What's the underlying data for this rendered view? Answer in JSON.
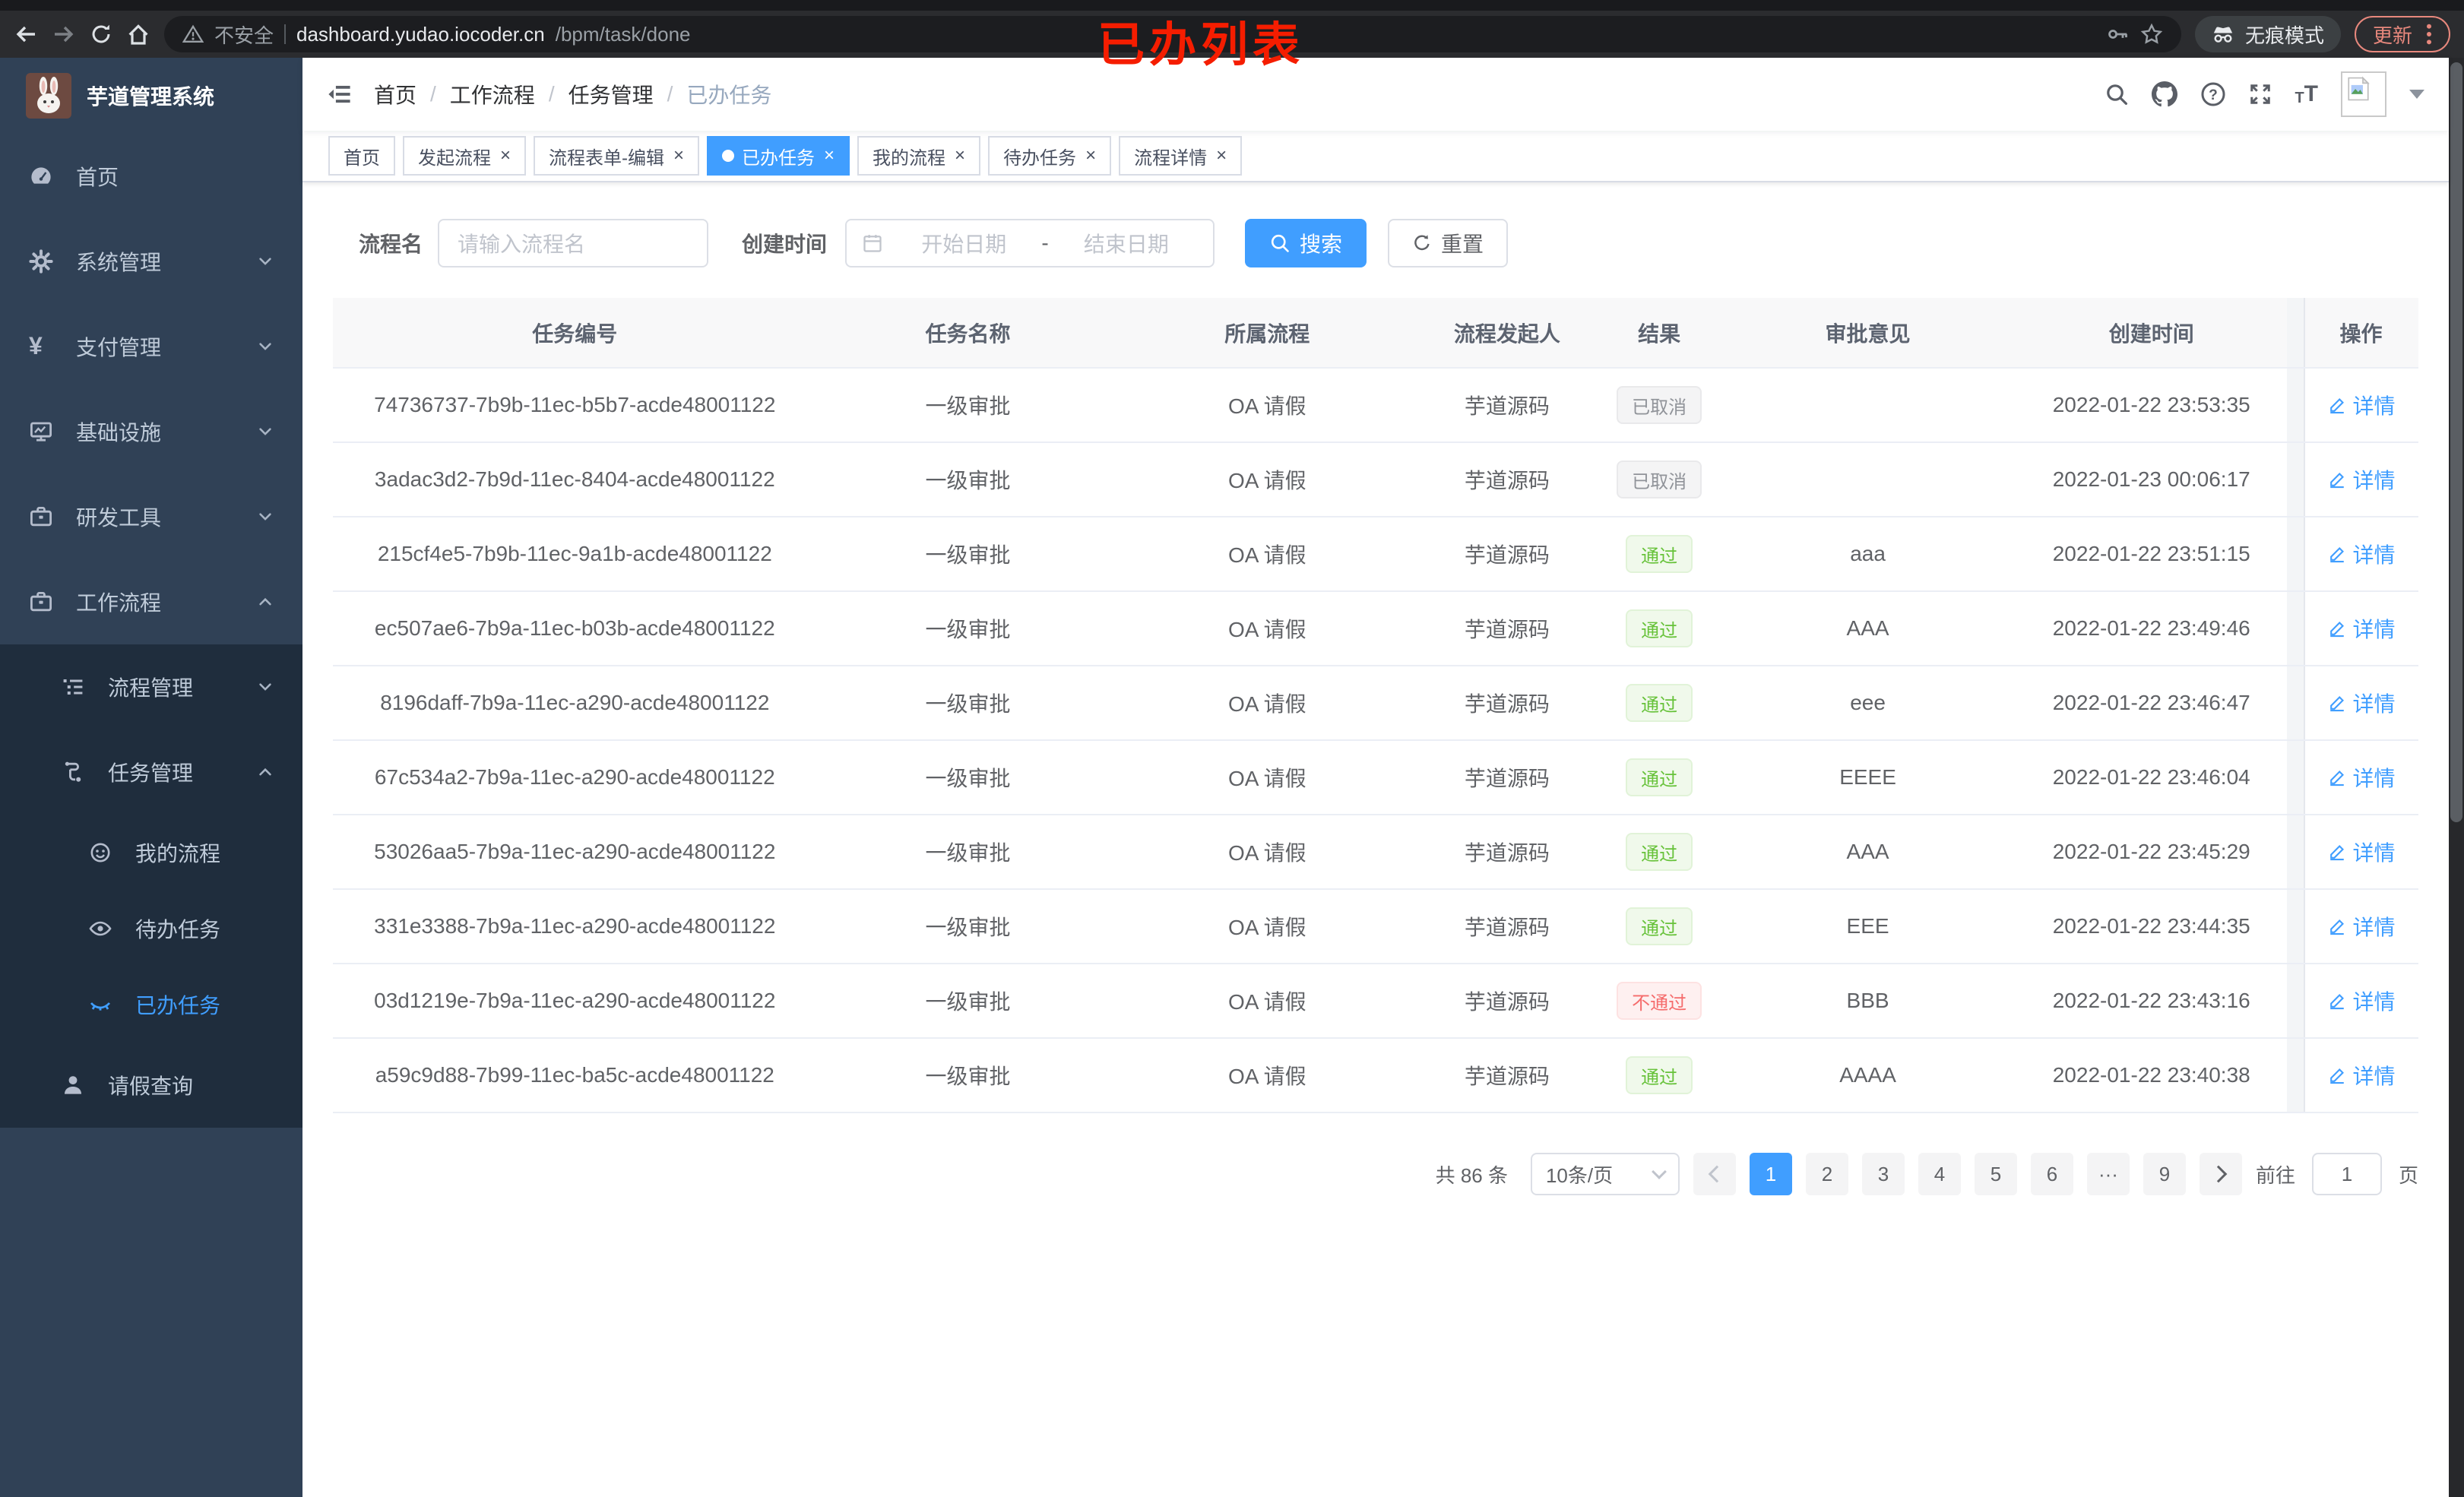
{
  "browser": {
    "security_label": "不安全",
    "url_host": "dashboard.yudao.iocoder.cn",
    "url_path": "/bpm/task/done",
    "incognito_label": "无痕模式",
    "update_label": "更新"
  },
  "annotation": "已办列表",
  "sidebar": {
    "title": "芋道管理系统",
    "items": [
      {
        "key": "home",
        "label": "首页",
        "icon": "dashboard",
        "indent": 1
      },
      {
        "key": "system",
        "label": "系统管理",
        "icon": "gear",
        "indent": 1,
        "arrow": "down"
      },
      {
        "key": "payment",
        "label": "支付管理",
        "icon": "yen",
        "indent": 1,
        "arrow": "down"
      },
      {
        "key": "infrastructure",
        "label": "基础设施",
        "icon": "monitor",
        "indent": 1,
        "arrow": "down"
      },
      {
        "key": "devtools",
        "label": "研发工具",
        "icon": "toolbox",
        "indent": 1,
        "arrow": "down"
      },
      {
        "key": "workflow",
        "label": "工作流程",
        "icon": "toolbox",
        "indent": 1,
        "arrow": "up"
      },
      {
        "key": "process-mgmt",
        "label": "流程管理",
        "icon": "tree",
        "indent": 2,
        "arrow": "down",
        "dark": true
      },
      {
        "key": "task-mgmt",
        "label": "任务管理",
        "icon": "flow",
        "indent": 2,
        "arrow": "up",
        "dark": true
      },
      {
        "key": "my-process",
        "label": "我的流程",
        "icon": "face",
        "indent": 3,
        "dark": true
      },
      {
        "key": "todo-tasks",
        "label": "待办任务",
        "icon": "eye",
        "indent": 3,
        "dark": true
      },
      {
        "key": "done-tasks",
        "label": "已办任务",
        "icon": "eye-closed",
        "indent": 3,
        "dark": true,
        "active": true
      },
      {
        "key": "leave-query",
        "label": "请假查询",
        "icon": "person",
        "indent": 2,
        "dark": true
      }
    ]
  },
  "navbar": {
    "breadcrumb": [
      {
        "label": "首页"
      },
      {
        "label": "工作流程"
      },
      {
        "label": "任务管理"
      },
      {
        "label": "已办任务",
        "current": true
      }
    ],
    "icons": [
      "search",
      "github",
      "help",
      "fullscreen",
      "font-size"
    ]
  },
  "tabs": [
    {
      "key": "home",
      "label": "首页",
      "closable": false
    },
    {
      "key": "start-process",
      "label": "发起流程",
      "closable": true
    },
    {
      "key": "form-edit",
      "label": "流程表单-编辑",
      "closable": true
    },
    {
      "key": "done-tasks",
      "label": "已办任务",
      "closable": true,
      "active": true
    },
    {
      "key": "my-process",
      "label": "我的流程",
      "closable": true
    },
    {
      "key": "todo-tasks",
      "label": "待办任务",
      "closable": true
    },
    {
      "key": "process-detail",
      "label": "流程详情",
      "closable": true
    }
  ],
  "filter": {
    "name_label": "流程名",
    "name_placeholder": "请输入流程名",
    "time_label": "创建时间",
    "start_placeholder": "开始日期",
    "range_separator": "-",
    "end_placeholder": "结束日期",
    "search_label": "搜索",
    "reset_label": "重置"
  },
  "table": {
    "headers": [
      "任务编号",
      "任务名称",
      "所属流程",
      "流程发起人",
      "结果",
      "审批意见",
      "创建时间",
      "操作"
    ],
    "action_label": "详情",
    "rows": [
      {
        "id": "74736737-7b9b-11ec-b5b7-acde48001122",
        "name": "一级审批",
        "process": "OA 请假",
        "starter": "芋道源码",
        "result": "已取消",
        "result_type": "info",
        "comment": "",
        "time": "2022-01-22 23:53:35"
      },
      {
        "id": "3adac3d2-7b9d-11ec-8404-acde48001122",
        "name": "一级审批",
        "process": "OA 请假",
        "starter": "芋道源码",
        "result": "已取消",
        "result_type": "info",
        "comment": "",
        "time": "2022-01-23 00:06:17"
      },
      {
        "id": "215cf4e5-7b9b-11ec-9a1b-acde48001122",
        "name": "一级审批",
        "process": "OA 请假",
        "starter": "芋道源码",
        "result": "通过",
        "result_type": "success",
        "comment": "aaa",
        "time": "2022-01-22 23:51:15"
      },
      {
        "id": "ec507ae6-7b9a-11ec-b03b-acde48001122",
        "name": "一级审批",
        "process": "OA 请假",
        "starter": "芋道源码",
        "result": "通过",
        "result_type": "success",
        "comment": "AAA",
        "time": "2022-01-22 23:49:46"
      },
      {
        "id": "8196daff-7b9a-11ec-a290-acde48001122",
        "name": "一级审批",
        "process": "OA 请假",
        "starter": "芋道源码",
        "result": "通过",
        "result_type": "success",
        "comment": "eee",
        "time": "2022-01-22 23:46:47"
      },
      {
        "id": "67c534a2-7b9a-11ec-a290-acde48001122",
        "name": "一级审批",
        "process": "OA 请假",
        "starter": "芋道源码",
        "result": "通过",
        "result_type": "success",
        "comment": "EEEE",
        "time": "2022-01-22 23:46:04"
      },
      {
        "id": "53026aa5-7b9a-11ec-a290-acde48001122",
        "name": "一级审批",
        "process": "OA 请假",
        "starter": "芋道源码",
        "result": "通过",
        "result_type": "success",
        "comment": "AAA",
        "time": "2022-01-22 23:45:29"
      },
      {
        "id": "331e3388-7b9a-11ec-a290-acde48001122",
        "name": "一级审批",
        "process": "OA 请假",
        "starter": "芋道源码",
        "result": "通过",
        "result_type": "success",
        "comment": "EEE",
        "time": "2022-01-22 23:44:35"
      },
      {
        "id": "03d1219e-7b9a-11ec-a290-acde48001122",
        "name": "一级审批",
        "process": "OA 请假",
        "starter": "芋道源码",
        "result": "不通过",
        "result_type": "danger",
        "comment": "BBB",
        "time": "2022-01-22 23:43:16"
      },
      {
        "id": "a59c9d88-7b99-11ec-ba5c-acde48001122",
        "name": "一级审批",
        "process": "OA 请假",
        "starter": "芋道源码",
        "result": "通过",
        "result_type": "success",
        "comment": "AAAA",
        "time": "2022-01-22 23:40:38"
      }
    ]
  },
  "pagination": {
    "total": "共 86 条",
    "page_size": "10条/页",
    "pages": [
      "1",
      "2",
      "3",
      "4",
      "5",
      "6",
      "···",
      "9"
    ],
    "active_page": "1",
    "goto_label": "前往",
    "goto_value": "1",
    "page_unit": "页"
  },
  "colors": {
    "accent": "#409EFF",
    "success": "#67C23A",
    "danger": "#F56C6C",
    "info": "#909399",
    "sidebar": "#304156",
    "sidebar_dark": "#1F2D3D",
    "annotation": "#F51D00"
  }
}
